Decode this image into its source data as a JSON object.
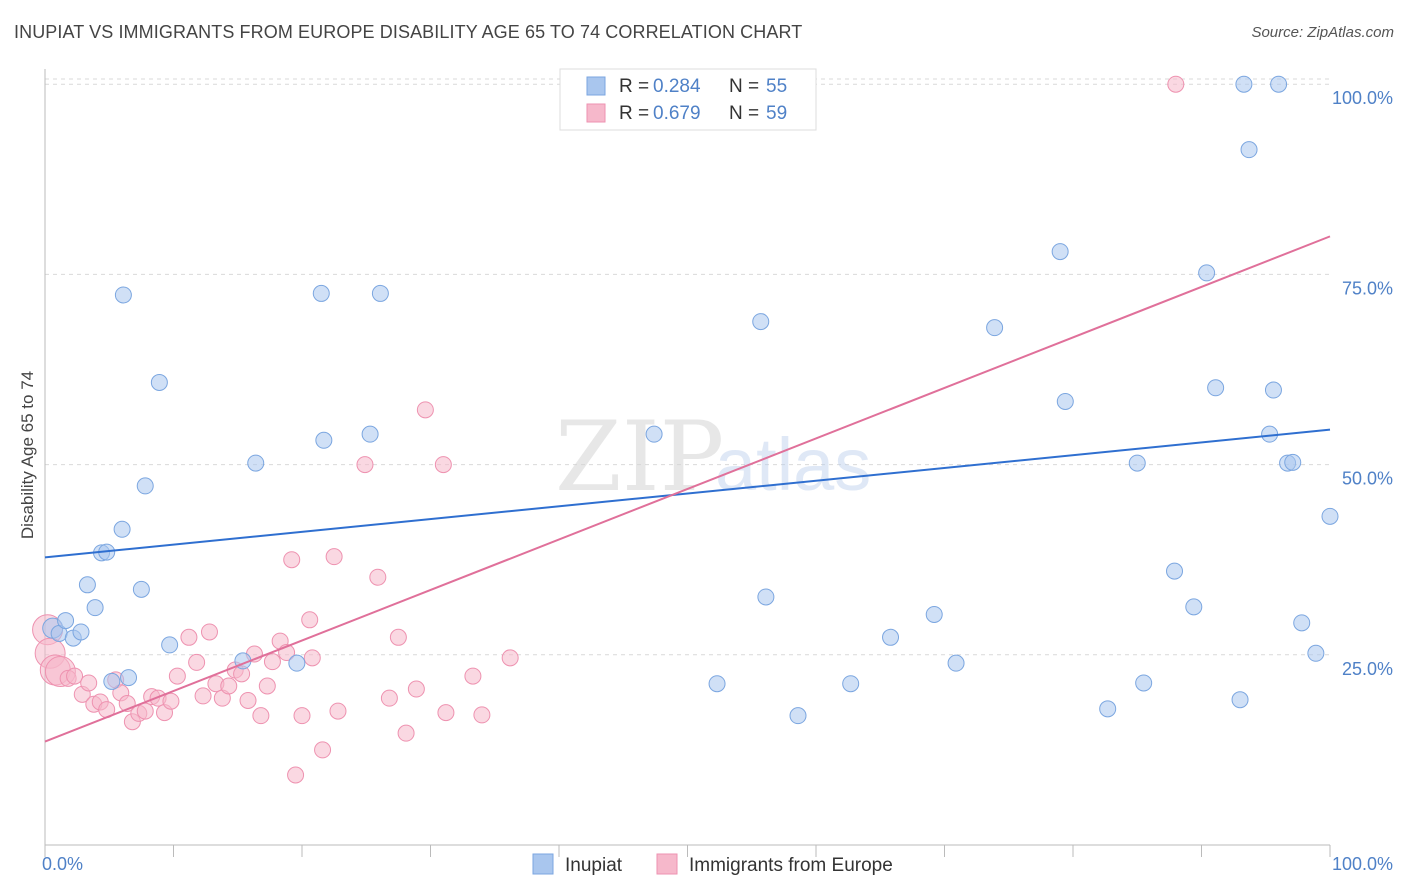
{
  "header": {
    "title": "INUPIAT VS IMMIGRANTS FROM EUROPE DISABILITY AGE 65 TO 74 CORRELATION CHART",
    "source": "Source: ZipAtlas.com"
  },
  "watermark": {
    "zip": "ZIP",
    "atlas": "atlas"
  },
  "colors": {
    "inupiat_fill": "#a9c6ee",
    "inupiat_stroke": "#7ba6e0",
    "inupiat_line": "#2f6fd0",
    "europe_fill": "#f6b8cb",
    "europe_stroke": "#ee92b0",
    "europe_line": "#e0709a",
    "tick_label": "#4f81c7",
    "grid": "#d9d9d9"
  },
  "chart_data": {
    "type": "scatter",
    "title": "INUPIAT VS IMMIGRANTS FROM EUROPE DISABILITY AGE 65 TO 74 CORRELATION CHART",
    "xlabel": "",
    "ylabel": "Disability Age 65 to 74",
    "xlim": [
      0,
      100
    ],
    "ylim": [
      0,
      102
    ],
    "x_tick_labels": [
      "0.0%",
      "100.0%"
    ],
    "y_ticks": [
      25,
      50,
      75,
      100
    ],
    "y_tick_labels": [
      "25.0%",
      "50.0%",
      "75.0%",
      "100.0%"
    ],
    "grid": "horizontal dashed",
    "legend_placement": "top-center",
    "legend": [
      {
        "swatch": "inupiat",
        "r_label": "R =",
        "r_value": "0.284",
        "n_label": "N =",
        "n_value": "55"
      },
      {
        "swatch": "europe",
        "r_label": "R =",
        "r_value": "0.679",
        "n_label": "N =",
        "n_value": "59"
      }
    ],
    "bottom_legend": [
      "Inupiat",
      "Immigrants from Europe"
    ],
    "series": [
      {
        "name": "Inupiat",
        "color": "#a9c6ee",
        "trend": {
          "x": [
            0,
            100
          ],
          "y": [
            37.8,
            54.6
          ]
        },
        "points": [
          {
            "x": 0.6,
            "y": 28.5
          },
          {
            "x": 1.1,
            "y": 27.8
          },
          {
            "x": 1.6,
            "y": 29.5
          },
          {
            "x": 2.2,
            "y": 27.2
          },
          {
            "x": 2.8,
            "y": 28.0
          },
          {
            "x": 3.3,
            "y": 34.2
          },
          {
            "x": 3.9,
            "y": 31.2
          },
          {
            "x": 4.4,
            "y": 38.4
          },
          {
            "x": 4.8,
            "y": 38.5
          },
          {
            "x": 5.2,
            "y": 21.5
          },
          {
            "x": 6.0,
            "y": 41.5
          },
          {
            "x": 6.5,
            "y": 22.0
          },
          {
            "x": 7.5,
            "y": 33.6
          },
          {
            "x": 7.8,
            "y": 47.2
          },
          {
            "x": 6.1,
            "y": 72.3
          },
          {
            "x": 8.9,
            "y": 60.8
          },
          {
            "x": 9.7,
            "y": 26.3
          },
          {
            "x": 15.4,
            "y": 24.2
          },
          {
            "x": 16.4,
            "y": 50.2
          },
          {
            "x": 19.6,
            "y": 23.9
          },
          {
            "x": 21.5,
            "y": 72.5
          },
          {
            "x": 21.7,
            "y": 53.2
          },
          {
            "x": 25.3,
            "y": 54.0
          },
          {
            "x": 26.1,
            "y": 72.5
          },
          {
            "x": 47.4,
            "y": 54.0
          },
          {
            "x": 49.8,
            "y": 100.3
          },
          {
            "x": 52.3,
            "y": 21.2
          },
          {
            "x": 55.7,
            "y": 68.8
          },
          {
            "x": 56.1,
            "y": 32.6
          },
          {
            "x": 58.6,
            "y": 17.0
          },
          {
            "x": 62.7,
            "y": 21.2
          },
          {
            "x": 65.8,
            "y": 27.3
          },
          {
            "x": 69.2,
            "y": 30.3
          },
          {
            "x": 70.9,
            "y": 23.9
          },
          {
            "x": 73.9,
            "y": 68.0
          },
          {
            "x": 79.0,
            "y": 78.0
          },
          {
            "x": 79.4,
            "y": 58.3
          },
          {
            "x": 82.7,
            "y": 17.9
          },
          {
            "x": 85.0,
            "y": 50.2
          },
          {
            "x": 85.5,
            "y": 21.3
          },
          {
            "x": 87.9,
            "y": 36.0
          },
          {
            "x": 89.4,
            "y": 31.3
          },
          {
            "x": 90.4,
            "y": 75.2
          },
          {
            "x": 91.1,
            "y": 60.1
          },
          {
            "x": 93.0,
            "y": 19.1
          },
          {
            "x": 93.3,
            "y": 100.0
          },
          {
            "x": 93.7,
            "y": 91.4
          },
          {
            "x": 95.3,
            "y": 54.0
          },
          {
            "x": 95.6,
            "y": 59.8
          },
          {
            "x": 96.7,
            "y": 50.2
          },
          {
            "x": 97.1,
            "y": 50.3
          },
          {
            "x": 96.0,
            "y": 100.0
          },
          {
            "x": 97.8,
            "y": 29.2
          },
          {
            "x": 98.9,
            "y": 25.2
          },
          {
            "x": 100.0,
            "y": 43.2
          }
        ]
      },
      {
        "name": "Immigrants from Europe",
        "color": "#f6b8cb",
        "trend": {
          "x": [
            0,
            100
          ],
          "y": [
            13.6,
            80.0
          ]
        },
        "points": [
          {
            "x": 0.2,
            "y": 28.3
          },
          {
            "x": 0.4,
            "y": 25.2
          },
          {
            "x": 0.8,
            "y": 23.0
          },
          {
            "x": 1.2,
            "y": 22.8
          },
          {
            "x": 1.8,
            "y": 21.9
          },
          {
            "x": 2.3,
            "y": 22.2
          },
          {
            "x": 2.9,
            "y": 19.8
          },
          {
            "x": 3.4,
            "y": 21.3
          },
          {
            "x": 3.8,
            "y": 18.5
          },
          {
            "x": 4.3,
            "y": 18.8
          },
          {
            "x": 4.8,
            "y": 17.8
          },
          {
            "x": 5.5,
            "y": 21.7
          },
          {
            "x": 5.9,
            "y": 20.0
          },
          {
            "x": 6.4,
            "y": 18.6
          },
          {
            "x": 6.8,
            "y": 16.2
          },
          {
            "x": 7.3,
            "y": 17.3
          },
          {
            "x": 7.8,
            "y": 17.6
          },
          {
            "x": 8.3,
            "y": 19.5
          },
          {
            "x": 8.8,
            "y": 19.3
          },
          {
            "x": 9.3,
            "y": 17.4
          },
          {
            "x": 9.8,
            "y": 18.9
          },
          {
            "x": 10.3,
            "y": 22.2
          },
          {
            "x": 11.2,
            "y": 27.3
          },
          {
            "x": 11.8,
            "y": 24.0
          },
          {
            "x": 12.3,
            "y": 19.6
          },
          {
            "x": 12.8,
            "y": 28.0
          },
          {
            "x": 13.3,
            "y": 21.2
          },
          {
            "x": 13.8,
            "y": 19.3
          },
          {
            "x": 14.3,
            "y": 20.9
          },
          {
            "x": 14.8,
            "y": 23.0
          },
          {
            "x": 15.3,
            "y": 22.5
          },
          {
            "x": 15.8,
            "y": 19.0
          },
          {
            "x": 16.3,
            "y": 25.1
          },
          {
            "x": 16.8,
            "y": 17.0
          },
          {
            "x": 17.3,
            "y": 20.9
          },
          {
            "x": 17.7,
            "y": 24.1
          },
          {
            "x": 18.3,
            "y": 26.8
          },
          {
            "x": 18.8,
            "y": 25.3
          },
          {
            "x": 19.2,
            "y": 37.5
          },
          {
            "x": 19.5,
            "y": 9.2
          },
          {
            "x": 20.0,
            "y": 17.0
          },
          {
            "x": 20.6,
            "y": 29.6
          },
          {
            "x": 20.8,
            "y": 24.6
          },
          {
            "x": 21.6,
            "y": 12.5
          },
          {
            "x": 22.5,
            "y": 37.9
          },
          {
            "x": 22.8,
            "y": 17.6
          },
          {
            "x": 24.9,
            "y": 50.0
          },
          {
            "x": 25.9,
            "y": 35.2
          },
          {
            "x": 26.8,
            "y": 19.3
          },
          {
            "x": 27.5,
            "y": 27.3
          },
          {
            "x": 28.1,
            "y": 14.7
          },
          {
            "x": 28.9,
            "y": 20.5
          },
          {
            "x": 29.6,
            "y": 57.2
          },
          {
            "x": 31.0,
            "y": 50.0
          },
          {
            "x": 31.2,
            "y": 17.4
          },
          {
            "x": 33.3,
            "y": 22.2
          },
          {
            "x": 34.0,
            "y": 17.1
          },
          {
            "x": 36.2,
            "y": 24.6
          },
          {
            "x": 88.0,
            "y": 100.0
          }
        ]
      }
    ]
  }
}
